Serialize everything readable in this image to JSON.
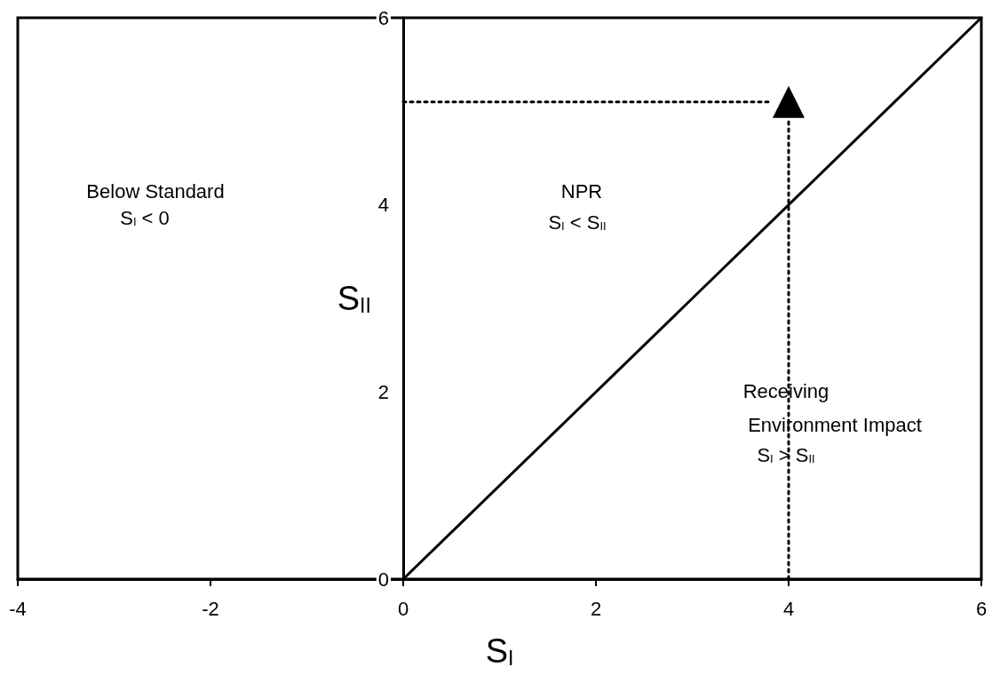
{
  "chart_data": {
    "type": "line",
    "xlabel": "S$_{I}$",
    "ylabel": "S$_{II}$",
    "xlim": [
      -4,
      6
    ],
    "ylim": [
      0,
      6
    ],
    "xticks": [
      -4,
      -2,
      0,
      2,
      4,
      6
    ],
    "yticks": [
      0,
      2,
      4,
      6
    ],
    "grid": false,
    "series": [
      {
        "x": [
          0,
          6
        ],
        "values": [
          0,
          6
        ],
        "color": "#000000",
        "line_style": "solid",
        "marker": "none"
      },
      {
        "x": [
          0,
          3.8
        ],
        "values": [
          5.1,
          5.1
        ],
        "color": "#000000",
        "line_style": "dotted",
        "marker": "none"
      },
      {
        "x": [
          4,
          4
        ],
        "values": [
          0,
          4.9
        ],
        "color": "#000000",
        "line_style": "dotted",
        "marker": "none"
      },
      {
        "type": "scatter",
        "x": [
          4
        ],
        "values": [
          5.1
        ],
        "color": "#000000",
        "marker": "triangle"
      }
    ],
    "annotations": [
      "Below Standard",
      "S$_{I}$ < 0",
      "NPR",
      "S$_{I}$ < S$_{II}$",
      "Receiving",
      "Environment Impact",
      "S$_{I}$ > S$_{II}$"
    ]
  }
}
